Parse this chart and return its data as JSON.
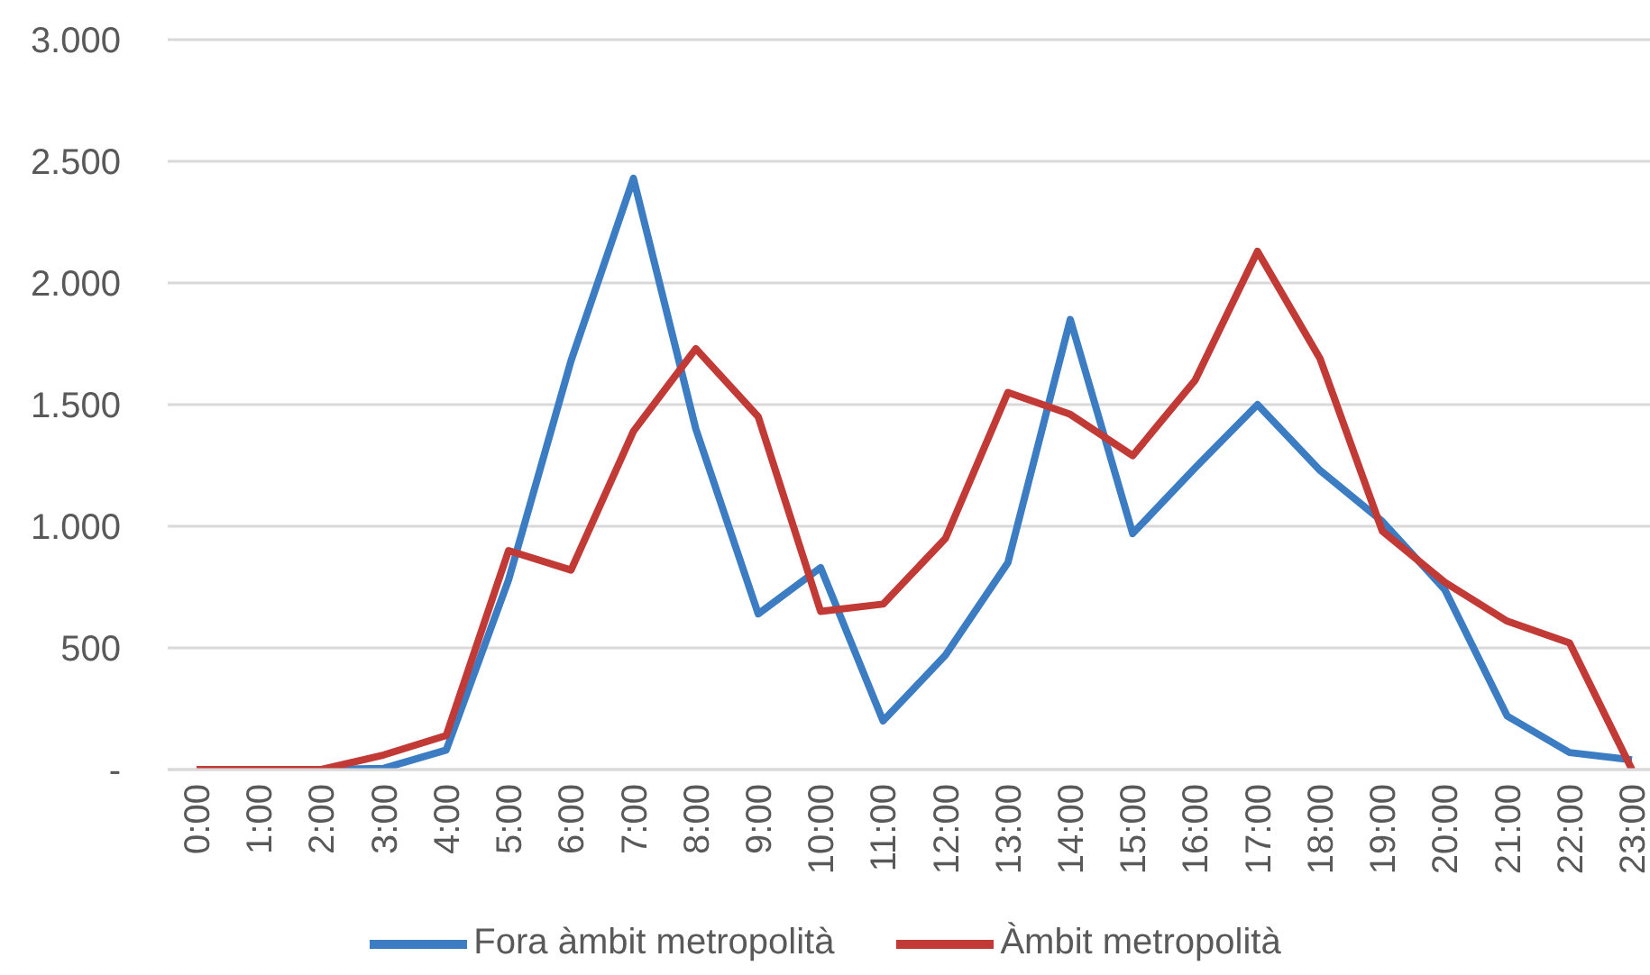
{
  "chart_data": {
    "type": "line",
    "categories": [
      "0:00",
      "1:00",
      "2:00",
      "3:00",
      "4:00",
      "5:00",
      "6:00",
      "7:00",
      "8:00",
      "9:00",
      "10:00",
      "11:00",
      "12:00",
      "13:00",
      "14:00",
      "15:00",
      "16:00",
      "17:00",
      "18:00",
      "19:00",
      "20:00",
      "21:00",
      "22:00",
      "23:00"
    ],
    "series": [
      {
        "name": "Fora àmbit metropolità",
        "color": "#3b7cc2",
        "values": [
          0,
          0,
          0,
          5,
          80,
          780,
          1680,
          2430,
          1400,
          640,
          830,
          200,
          470,
          850,
          1850,
          970,
          1240,
          1500,
          1230,
          1020,
          740,
          220,
          70,
          40
        ]
      },
      {
        "name": "Àmbit metropolità",
        "color": "#c23a35",
        "values": [
          0,
          0,
          0,
          60,
          140,
          900,
          820,
          1390,
          1730,
          1450,
          650,
          680,
          950,
          1550,
          1460,
          1290,
          1600,
          2130,
          1690,
          980,
          770,
          610,
          520,
          0
        ]
      }
    ],
    "ylim": [
      0,
      3000
    ],
    "yticks": [
      {
        "value": 0,
        "label": "-"
      },
      500,
      {
        "value": 1000,
        "label": "1.000"
      },
      {
        "value": 1500,
        "label": "1.500"
      },
      {
        "value": 2000,
        "label": "2.000"
      },
      {
        "value": 2500,
        "label": "2.500"
      },
      {
        "value": 3000,
        "label": "3.000"
      }
    ],
    "grid": "y",
    "legend": "bottom"
  }
}
